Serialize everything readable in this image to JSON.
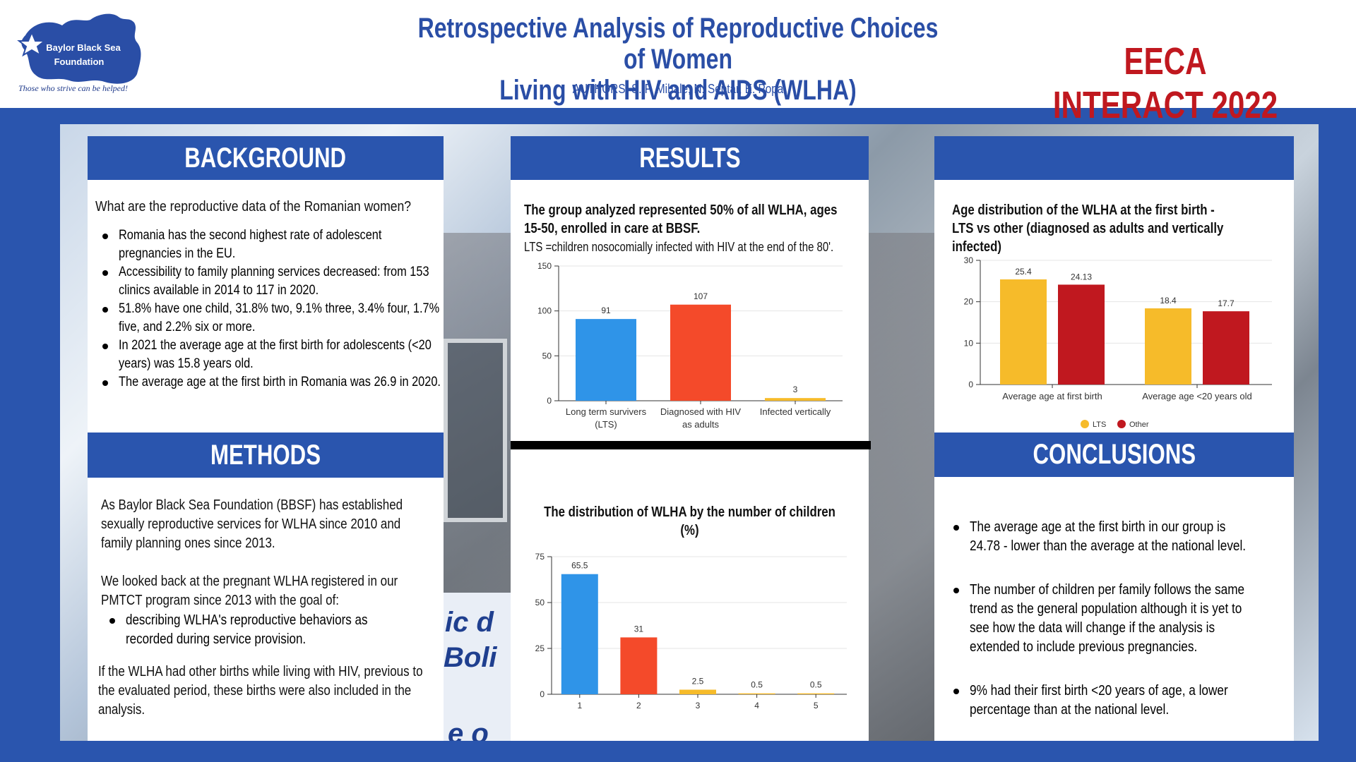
{
  "header": {
    "logo_text_line1": "Baylor Black Sea",
    "logo_text_line2": "Foundation",
    "logo_tagline": "Those who strive can be helped!",
    "title_line1": "Retrospective Analysis of Reproductive Choices of Women",
    "title_line2": "Living with HIV and AIDS (WLHA)",
    "authors": "AUTHORS: S. F. Mihale, N. Septar, E. Popa",
    "event": "EECA INTERACT 2022"
  },
  "photo_sign": {
    "line1": "ic d",
    "line2": "Boli",
    "line3": "e o"
  },
  "background": {
    "heading": "BACKGROUND",
    "question": "What are the reproductive data of the Romanian women?",
    "bullets": [
      "Romania has the second highest rate of adolescent pregnancies in the EU.",
      "Accessibility to family planning services decreased: from 153 clinics available in 2014 to 117 in 2020.",
      "51.8% have one child, 31.8% two, 9.1% three, 3.4% four, 1.7% five, and 2.2% six or more.",
      "In 2021 the average age at the first birth for adolescents (<20 years) was 15.8 years old.",
      "The average age at the first birth in Romania was 26.9 in 2020."
    ]
  },
  "methods": {
    "heading": "METHODS",
    "para1": "As Baylor Black Sea Foundation (BBSF) has established sexually reproductive services for WLHA since 2010 and family planning ones since 2013.",
    "para2": "We looked back at the pregnant WLHA registered in our PMTCT program since 2013 with the goal of:",
    "bullet": "describing WLHA's reproductive behaviors as recorded during service provision.",
    "para3": "If the WLHA had other births while living  with HIV, previous to the evaluated period, these births were also included in the analysis."
  },
  "results": {
    "heading": "RESULTS",
    "intro": "The group analyzed represented 50% of all WLHA, ages 15-50, enrolled in care at BBSF.",
    "lts_note": "LTS =children nosocomially infected with HIV at the end of the 80'."
  },
  "right_panel": {
    "heading": ""
  },
  "conclusions": {
    "heading": "CONCLUSIONS",
    "bullets": [
      "The average age at the first birth in our group is 24.78 - lower than the average at the national level.",
      "The number of children per family follows the same trend as the general population although it is yet to see how the data will change if the analysis is extended to include previous pregnancies.",
      "9% had their first birth <20 years of age, a lower percentage than at the national level."
    ]
  },
  "colors": {
    "blue": "#2a55ae",
    "bar_blue": "#2f94e8",
    "bar_orange": "#f44a2a",
    "bar_yellow": "#f6bb2a",
    "bar_red": "#c0181f"
  },
  "chart_data": [
    {
      "type": "bar",
      "title": "",
      "categories": [
        "Long term survivers (LTS)",
        "Diagnosed with HIV as adults",
        "Infected vertically"
      ],
      "category_lines": [
        [
          "Long term survivers",
          "(LTS)"
        ],
        [
          "Diagnosed with HIV",
          "as adults"
        ],
        [
          "Infected vertically"
        ]
      ],
      "values": [
        91,
        107,
        3
      ],
      "bar_colors": [
        "#2f94e8",
        "#f44a2a",
        "#f6bb2a"
      ],
      "ylim": [
        0,
        150
      ],
      "yticks": [
        0,
        50,
        100,
        150
      ],
      "grid": true
    },
    {
      "type": "bar",
      "title": "The distribution of WLHA by the number of children (%)",
      "categories": [
        "1",
        "2",
        "3",
        "4",
        "5"
      ],
      "values": [
        65.5,
        31,
        2.5,
        0.5,
        0.5
      ],
      "value_labels": [
        "65.5",
        "31",
        "2.5",
        "0.5",
        "0.5"
      ],
      "bar_colors": [
        "#2f94e8",
        "#f44a2a",
        "#f6bb2a",
        "#f6bb2a",
        "#f6bb2a"
      ],
      "ylim": [
        0,
        75
      ],
      "yticks": [
        0,
        25,
        50,
        75
      ],
      "grid": true
    },
    {
      "type": "bar",
      "title": "Age distribution of the WLHA at the first birth - LTS vs other (diagnosed as adults and vertically infected)",
      "categories": [
        "Average age at first birth",
        "Average age <20 years old"
      ],
      "series": [
        {
          "name": "LTS",
          "values": [
            25.4,
            18.4
          ],
          "color": "#f6bb2a"
        },
        {
          "name": "Other",
          "values": [
            24.13,
            17.7
          ],
          "color": "#c0181f"
        }
      ],
      "ylim": [
        0,
        30
      ],
      "yticks": [
        0,
        10,
        20,
        30
      ],
      "grid": true,
      "legend": "bottom"
    }
  ]
}
